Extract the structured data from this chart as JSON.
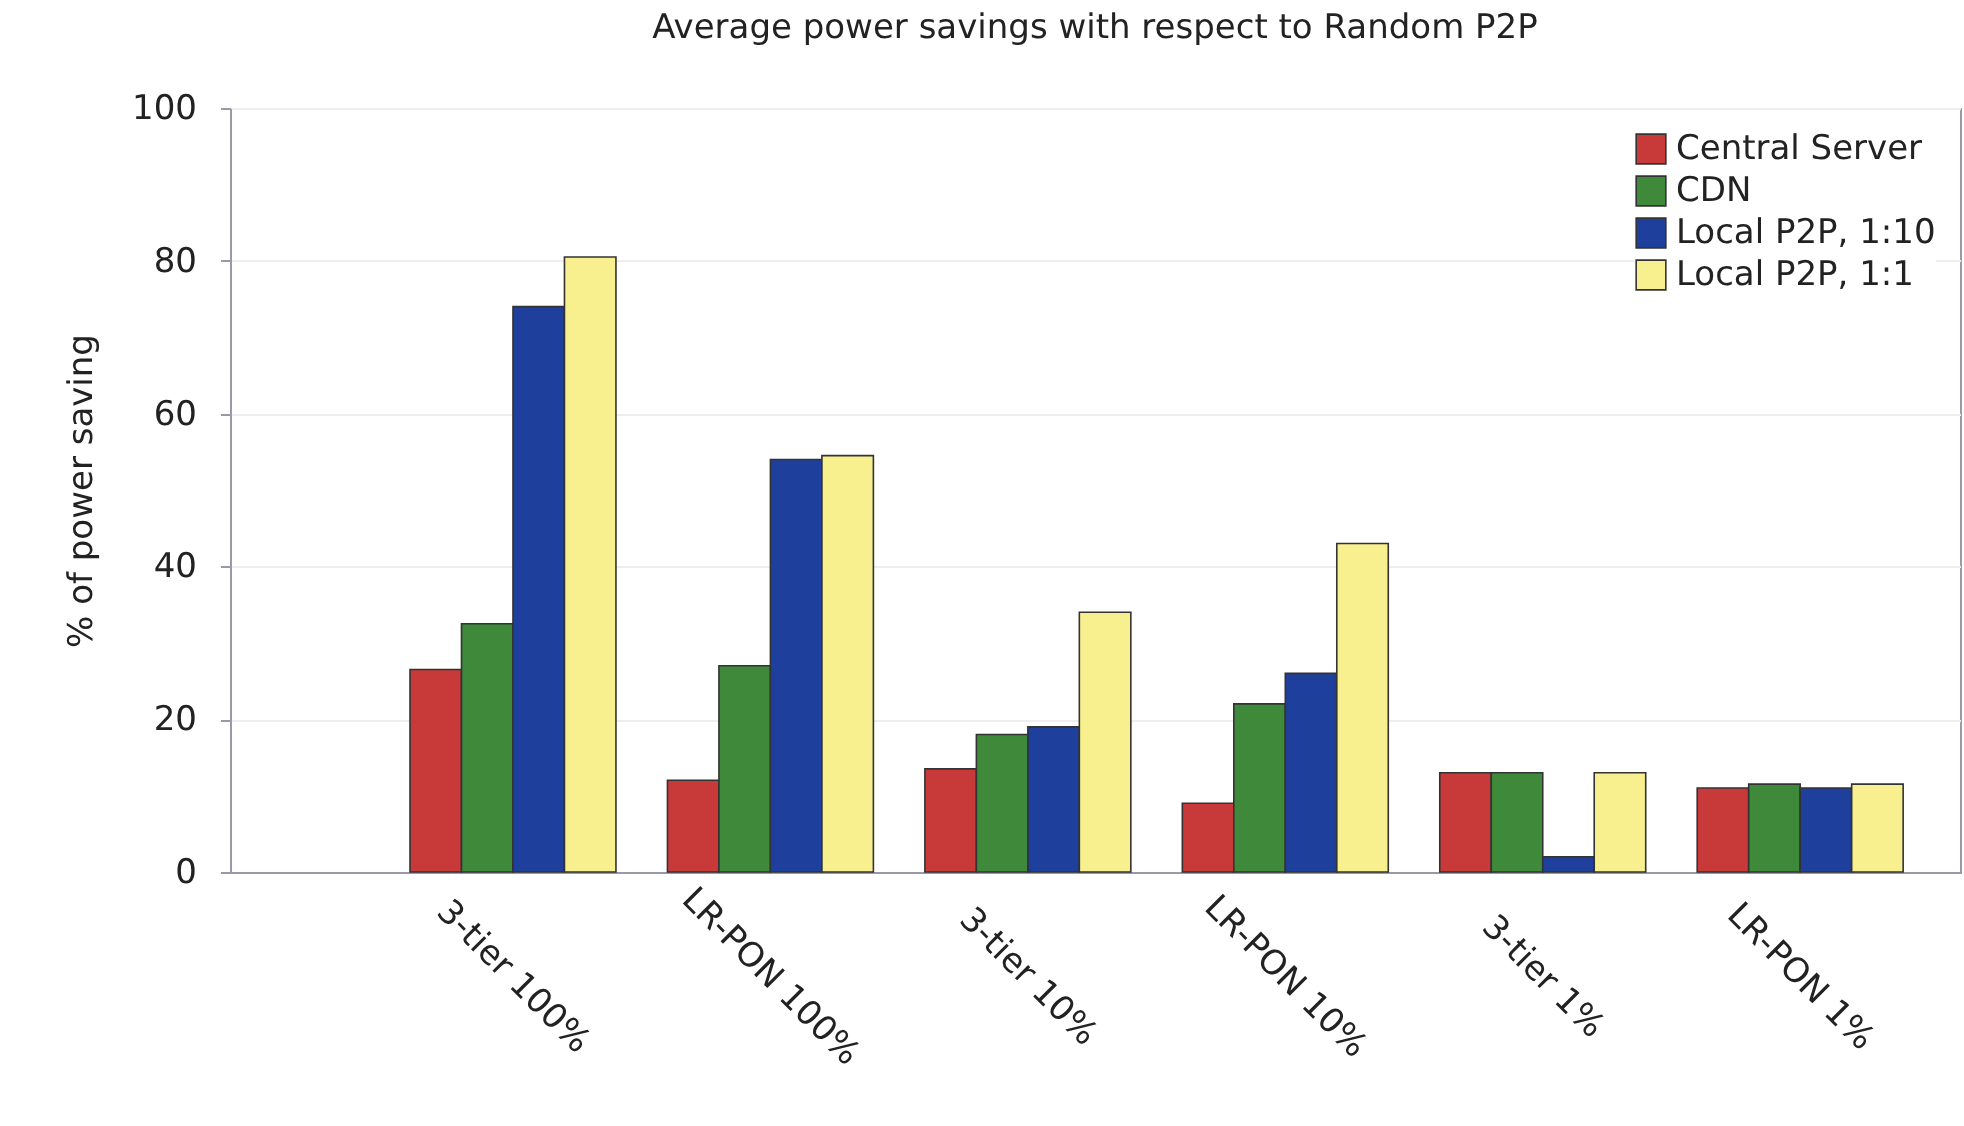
{
  "chart_data": {
    "type": "bar",
    "title": "Average power savings with respect to Random P2P",
    "ylabel": "% of power saving",
    "categories": [
      "3-tier 100%",
      "LR-PON 100%",
      "3-tier 10%",
      "LR-PON 10%",
      "3-tier 1%",
      "LR-PON 1%"
    ],
    "series": [
      {
        "name": "Central Server",
        "color": "#c83a3a",
        "values": [
          26.5,
          12,
          13.5,
          9,
          13,
          11
        ]
      },
      {
        "name": "CDN",
        "color": "#3f8a3a",
        "values": [
          32.5,
          27,
          18,
          22,
          13,
          11.5
        ]
      },
      {
        "name": "Local P2P, 1:10",
        "color": "#1f3f9c",
        "values": [
          74,
          54,
          19,
          26,
          2,
          11
        ]
      },
      {
        "name": "Local P2P, 1:1",
        "color": "#f8f08e",
        "values": [
          80.5,
          54.5,
          34,
          43,
          13,
          11.5
        ]
      }
    ],
    "ylim": [
      0,
      100
    ],
    "yticks": [
      0,
      20,
      40,
      60,
      80,
      100
    ],
    "grid": "y",
    "legend": "top right"
  }
}
